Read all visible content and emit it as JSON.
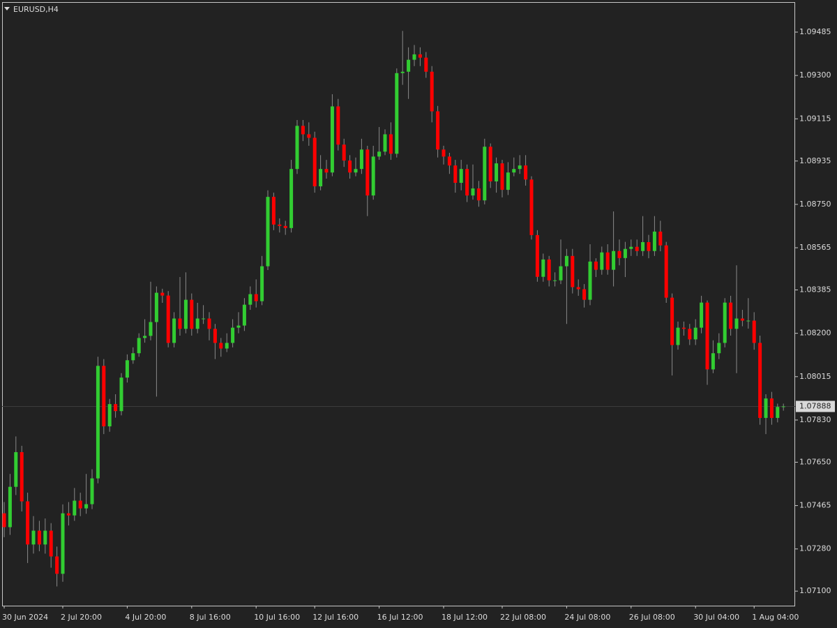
{
  "chart_data": {
    "type": "candlestick",
    "title": "EURUSD,H4",
    "up_color": "#32cd32",
    "down_color": "#ff0000",
    "current_price": 1.07888,
    "ylim": [
      1.07038,
      1.09613
    ],
    "yticks": [
      1.09485,
      {
        "value": 1.093,
        "label": "1.09300"
      },
      1.09115,
      1.08935,
      {
        "value": 1.0875,
        "label": "1.08750"
      },
      1.08565,
      1.08385,
      {
        "value": 1.082,
        "label": "1.08200"
      },
      1.08015,
      {
        "value": 1.0783,
        "label": "1.07830"
      },
      {
        "value": 1.0765,
        "label": "1.07650"
      },
      1.07465,
      {
        "value": 1.0728,
        "label": "1.07280"
      },
      {
        "value": 1.071,
        "label": "1.07100"
      }
    ],
    "categories": [
      "30 Jun 2024",
      null,
      null,
      null,
      null,
      null,
      null,
      null,
      null,
      null,
      "2 Jul 20:00",
      null,
      null,
      null,
      null,
      null,
      null,
      null,
      null,
      null,
      null,
      "4 Jul 20:00",
      null,
      null,
      null,
      null,
      null,
      null,
      null,
      null,
      null,
      null,
      "8 Jul 16:00",
      null,
      null,
      null,
      null,
      null,
      null,
      null,
      null,
      null,
      null,
      "10 Jul 16:00",
      null,
      null,
      null,
      null,
      null,
      null,
      null,
      null,
      null,
      "12 Jul 16:00",
      null,
      null,
      null,
      null,
      null,
      null,
      null,
      null,
      null,
      null,
      "16 Jul 12:00",
      null,
      null,
      null,
      null,
      null,
      null,
      null,
      null,
      null,
      null,
      "18 Jul 12:00",
      null,
      null,
      null,
      null,
      null,
      null,
      null,
      null,
      null,
      "22 Jul 08:00",
      null,
      null,
      null,
      null,
      null,
      null,
      null,
      null,
      null,
      null,
      "24 Jul 08:00",
      null,
      null,
      null,
      null,
      null,
      null,
      null,
      null,
      null,
      null,
      "26 Jul 08:00",
      null,
      null,
      null,
      null,
      null,
      null,
      null,
      null,
      null,
      null,
      "30 Jul 04:00",
      null,
      null,
      null,
      null,
      null,
      null,
      null,
      null,
      null,
      "1 Aug 04:00",
      null,
      null,
      null,
      null,
      null
    ],
    "open": [
      1.07432,
      1.07373,
      1.07545,
      1.07693,
      1.07483,
      1.07299,
      1.07358,
      1.07299,
      1.07358,
      1.07248,
      1.07174,
      1.07432,
      1.07423,
      1.07486,
      1.07453,
      1.07471,
      1.07581,
      1.08061,
      1.07803,
      1.07898,
      1.07868,
      1.08011,
      1.08085,
      1.08115,
      1.0818,
      1.08189,
      1.08248,
      1.08373,
      1.08361,
      1.08159,
      1.08263,
      1.08219,
      1.08343,
      1.08219,
      1.08263,
      1.08263,
      1.08219,
      1.08159,
      1.08135,
      1.08159,
      1.08224,
      1.08233,
      1.08322,
      1.08367,
      1.08337,
      1.08486,
      1.08782,
      1.08664,
      1.08658,
      1.08649,
      1.08901,
      1.09085,
      1.09049,
      1.09034,
      1.08827,
      1.08901,
      1.08886,
      1.09168,
      1.09005,
      1.08937,
      1.08886,
      1.08901,
      1.08984,
      1.08788,
      1.08954,
      1.08975,
      1.09049,
      1.08966,
      1.0931,
      1.09316,
      1.09367,
      1.0939,
      1.09376,
      1.09316,
      1.09147,
      1.08984,
      1.08954,
      1.08916,
      1.08842,
      1.08901,
      1.08788,
      1.08818,
      1.08767,
      1.08996,
      1.08848,
      1.08925,
      1.08812,
      1.08886,
      1.08901,
      1.08916,
      1.08856,
      1.08619,
      1.08441,
      1.08515,
      1.08426,
      1.08426,
      1.08486,
      1.0853,
      1.08397,
      1.08388,
      1.08343,
      1.08506,
      1.08471,
      1.08545,
      1.08471,
      1.08551,
      1.08521,
      1.0856,
      1.08569,
      1.08551,
      1.08589,
      1.08551,
      1.08634,
      1.08575,
      1.08352,
      1.0815,
      1.08224,
      1.08219,
      1.08174,
      1.08224,
      1.08331,
      1.08046,
      1.08115,
      1.08159,
      1.08331,
      1.08219,
      1.08263,
      1.08254,
      1.08254,
      1.08159,
      1.07839,
      1.07922,
      1.07839,
      1.07886
    ],
    "high": [
      1.0748,
      1.076,
      1.0776,
      1.0772,
      1.0752,
      1.0742,
      1.074,
      1.0741,
      1.0739,
      1.0729,
      1.0747,
      1.0748,
      1.0754,
      1.0752,
      1.076,
      1.0762,
      1.081,
      1.0809,
      1.0792,
      1.0794,
      1.0803,
      1.0811,
      1.0814,
      1.082,
      1.0826,
      1.0842,
      1.084,
      1.0839,
      1.0838,
      1.0829,
      1.0844,
      1.0846,
      1.0837,
      1.0833,
      1.0832,
      1.0829,
      1.0824,
      1.0818,
      1.082,
      1.0826,
      1.0829,
      1.0835,
      1.084,
      1.0843,
      1.0853,
      1.0881,
      1.088,
      1.0869,
      1.0868,
      1.0894,
      1.0911,
      1.0911,
      1.091,
      1.0906,
      1.0896,
      1.0894,
      1.0922,
      1.092,
      1.0903,
      1.0896,
      1.0895,
      1.0903,
      1.09,
      1.09,
      1.0908,
      1.0907,
      1.091,
      1.0933,
      1.0949,
      1.0942,
      1.0943,
      1.0942,
      1.094,
      1.0934,
      1.0917,
      1.09,
      1.0897,
      1.0894,
      1.0894,
      1.0892,
      1.0892,
      1.0885,
      1.0903,
      1.0901,
      1.0895,
      1.0894,
      1.0893,
      1.0895,
      1.0896,
      1.0896,
      1.0887,
      1.0864,
      1.0854,
      1.0853,
      1.0846,
      1.086,
      1.0856,
      1.0856,
      1.0843,
      1.0841,
      1.0858,
      1.0852,
      1.0857,
      1.0858,
      1.0872,
      1.086,
      1.0859,
      1.086,
      1.086,
      1.087,
      1.0862,
      1.087,
      1.0868,
      1.0859,
      1.0837,
      1.0825,
      1.0825,
      1.0824,
      1.0826,
      1.0836,
      1.0834,
      1.0817,
      1.082,
      1.0835,
      1.0836,
      1.0849,
      1.083,
      1.0835,
      1.0829,
      1.0819,
      1.0794,
      1.0795,
      1.079,
      1.079
    ],
    "low": [
      1.0733,
      1.0734,
      1.0751,
      1.0744,
      1.0722,
      1.0726,
      1.0727,
      1.0726,
      1.072,
      1.0712,
      1.0714,
      1.0738,
      1.074,
      1.0742,
      1.0743,
      1.0745,
      1.0756,
      1.0777,
      1.0778,
      1.0784,
      1.0785,
      1.0799,
      1.0807,
      1.081,
      1.0816,
      1.0817,
      1.0793,
      1.0833,
      1.0814,
      1.0814,
      1.0819,
      1.082,
      1.0819,
      1.082,
      1.0824,
      1.0817,
      1.0809,
      1.081,
      1.0812,
      1.0814,
      1.082,
      1.0821,
      1.083,
      1.0831,
      1.0832,
      1.0847,
      1.0864,
      1.0863,
      1.0862,
      1.0863,
      1.0888,
      1.0902,
      1.09,
      1.088,
      1.0881,
      1.0886,
      1.0887,
      1.0898,
      1.0891,
      1.0886,
      1.0887,
      1.0888,
      1.087,
      1.0877,
      1.0894,
      1.0896,
      1.0894,
      1.0895,
      1.0926,
      1.092,
      1.0934,
      1.0934,
      1.0929,
      1.091,
      1.0895,
      1.0892,
      1.0888,
      1.088,
      1.0881,
      1.0876,
      1.0877,
      1.0874,
      1.0875,
      1.0882,
      1.088,
      1.0878,
      1.0879,
      1.0887,
      1.0888,
      1.0883,
      1.086,
      1.0842,
      1.0842,
      1.084,
      1.084,
      1.0841,
      1.0824,
      1.0837,
      1.0836,
      1.0831,
      1.0832,
      1.0844,
      1.0845,
      1.0845,
      1.084,
      1.0849,
      1.0844,
      1.0853,
      1.0853,
      1.0853,
      1.0852,
      1.0853,
      1.0855,
      1.0833,
      1.0802,
      1.0813,
      1.0819,
      1.0815,
      1.0815,
      1.082,
      1.0798,
      1.0803,
      1.0809,
      1.0814,
      1.0819,
      1.0803,
      1.0823,
      1.0822,
      1.0813,
      1.0781,
      1.0777,
      1.0781,
      1.0782,
      1.0787
    ],
    "close": [
      1.07373,
      1.07545,
      1.07693,
      1.07483,
      1.07299,
      1.07358,
      1.07299,
      1.07358,
      1.07248,
      1.07174,
      1.07432,
      1.07423,
      1.07486,
      1.07453,
      1.07471,
      1.07581,
      1.08061,
      1.07803,
      1.07898,
      1.07868,
      1.08011,
      1.08085,
      1.08115,
      1.0818,
      1.08189,
      1.08248,
      1.08373,
      1.08361,
      1.08159,
      1.08263,
      1.08219,
      1.08343,
      1.08219,
      1.08263,
      1.08263,
      1.08219,
      1.08159,
      1.08135,
      1.08159,
      1.08224,
      1.08233,
      1.08322,
      1.08367,
      1.08337,
      1.08486,
      1.08782,
      1.08664,
      1.08658,
      1.08649,
      1.08901,
      1.09085,
      1.09049,
      1.09034,
      1.08827,
      1.08901,
      1.08886,
      1.09168,
      1.09005,
      1.08937,
      1.08886,
      1.08901,
      1.08984,
      1.08788,
      1.08954,
      1.08975,
      1.09049,
      1.08966,
      1.0931,
      1.09316,
      1.09367,
      1.0939,
      1.09376,
      1.09316,
      1.09147,
      1.08984,
      1.08954,
      1.08916,
      1.08842,
      1.08901,
      1.08788,
      1.08818,
      1.08767,
      1.08996,
      1.08848,
      1.08925,
      1.08812,
      1.08886,
      1.08901,
      1.08916,
      1.08856,
      1.08619,
      1.08441,
      1.08515,
      1.08426,
      1.08426,
      1.08486,
      1.0853,
      1.08397,
      1.08388,
      1.08343,
      1.08506,
      1.08471,
      1.08545,
      1.08471,
      1.08551,
      1.08521,
      1.0856,
      1.08569,
      1.08551,
      1.08589,
      1.08551,
      1.08634,
      1.08575,
      1.08352,
      1.0815,
      1.08224,
      1.08219,
      1.08174,
      1.08224,
      1.08331,
      1.08046,
      1.08115,
      1.08159,
      1.08331,
      1.08219,
      1.08263,
      1.08254,
      1.08254,
      1.08159,
      1.07839,
      1.07922,
      1.07839,
      1.07886,
      1.07888
    ]
  }
}
